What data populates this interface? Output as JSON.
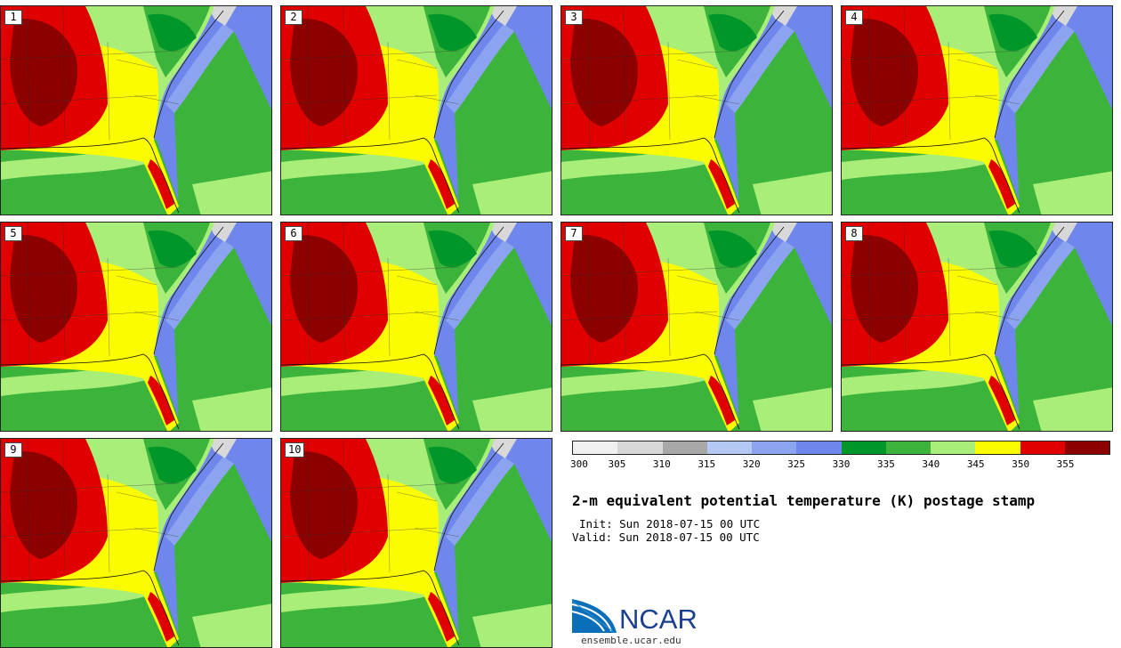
{
  "title": "2-m equivalent potential temperature (K) postage stamp",
  "init_line": "Init: Sun 2018-07-15 00 UTC",
  "valid_line": "Valid: Sun 2018-07-15 00 UTC",
  "logo_text": "NCAR",
  "site": "ensemble.ucar.edu",
  "panels": [
    "1",
    "2",
    "3",
    "4",
    "5",
    "6",
    "7",
    "8",
    "9",
    "10"
  ],
  "colorbar": {
    "labels": [
      "300",
      "305",
      "310",
      "315",
      "320",
      "325",
      "330",
      "335",
      "340",
      "345",
      "350",
      "355"
    ],
    "colors": [
      "#f0f0f0",
      "#d8d8d8",
      "#a8a8a8",
      "#b4c8f4",
      "#8ca4f0",
      "#6f87ec",
      "#00962a",
      "#3cb43c",
      "#a8ee78",
      "#fcfc00",
      "#e00000",
      "#8c0000"
    ]
  },
  "map_colors": {
    "ocean": "#6f87ec",
    "light_blue": "#8ca4f0",
    "gray": "#d8d8d8",
    "dark_green": "#00962a",
    "green": "#3cb43c",
    "light_green": "#a8ee78",
    "yellow": "#fcfc00",
    "red": "#e00000",
    "dark_red": "#8c0000"
  }
}
